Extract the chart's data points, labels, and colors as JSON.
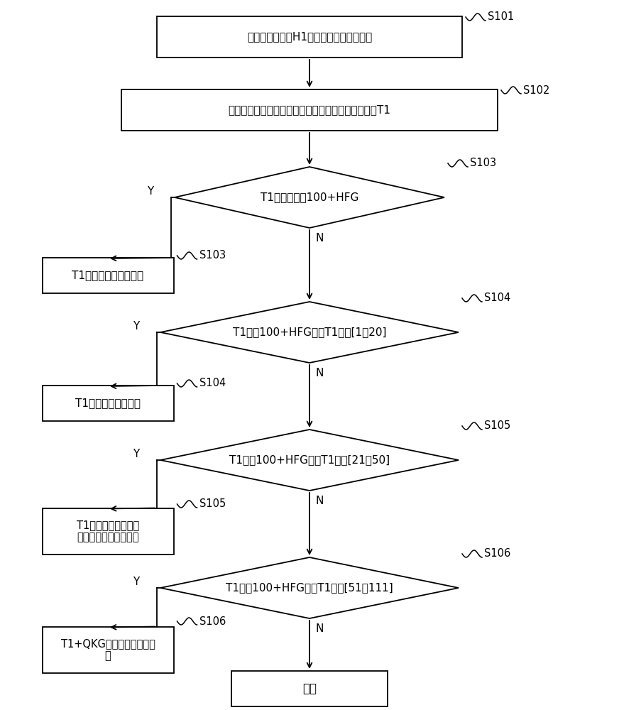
{
  "background_color": "#ffffff",
  "s101_text": "获取墙体的高度H1和砌块的竖向布局条件",
  "s102_text": "所述砌块的竖向布局条件为无横梁，则获取调节高度T1",
  "d103_text": "T1大于或等于100+HFG",
  "b103_text": "T1为一排切割砖的高度",
  "d104_text": "T1小于100+HFG，且T1属于[1，20]",
  "b104_text": "T1为嵌缝调整的高度",
  "d105_text": "T1小于100+HFG，且T1属于[21，50]",
  "b105_text": "T1为嵌缝调整的高度\n和导墙调整的高度之和",
  "d106_text": "T1小于100+HFG，且T1属于[51，111]",
  "b106_text": "T1+QKG为两排切割砖的高\n度",
  "end_text": "结束",
  "label_S101": "S101",
  "label_S102": "S102",
  "label_S103": "S103",
  "label_S104": "S104",
  "label_S105": "S105",
  "label_S106": "S106",
  "Y_label": "Y",
  "N_label": "N"
}
